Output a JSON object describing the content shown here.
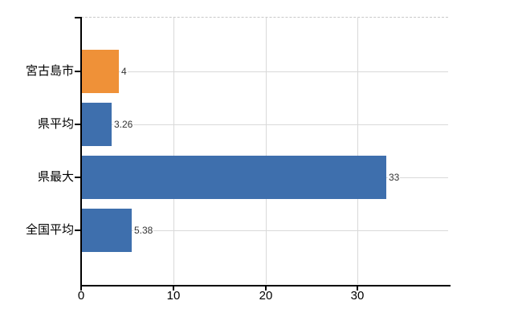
{
  "chart_data": {
    "type": "bar",
    "orientation": "horizontal",
    "title": "",
    "xlabel": "",
    "ylabel": "",
    "categories": [
      "宮古島市",
      "県平均",
      "県最大",
      "全国平均"
    ],
    "values": [
      4,
      3.26,
      33,
      5.38
    ],
    "value_labels": [
      "4",
      "3.26",
      "33",
      "5.38"
    ],
    "bar_colors": [
      "#ef9138",
      "#3e6fad",
      "#3e6fad",
      "#3e6fad"
    ],
    "xlim": [
      0,
      40
    ],
    "x_ticks": [
      0,
      10,
      20,
      30
    ],
    "x_tick_labels": [
      "0",
      "10",
      "20",
      "30"
    ],
    "grid": true,
    "legend": false
  },
  "colors": {
    "bar_orange": "#ef9138",
    "bar_blue": "#3e6fad",
    "gridline": "#d9d9d9",
    "top_border_dashed": "#c9c9c9",
    "axis": "#000000",
    "category_label": "#000000",
    "value_label": "#333333",
    "background": "#ffffff"
  }
}
